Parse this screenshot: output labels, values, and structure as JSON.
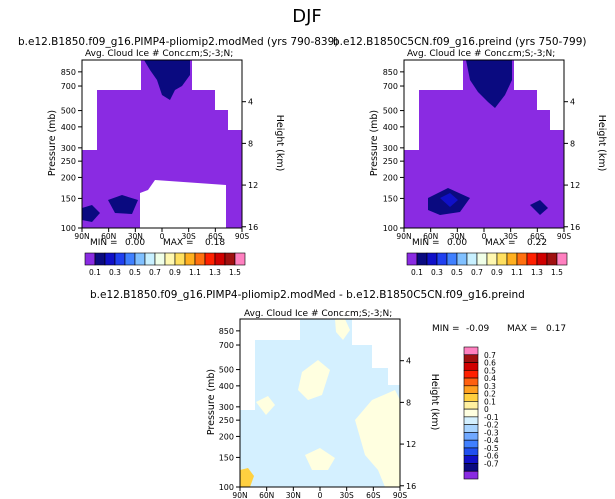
{
  "page_title": "DJF",
  "colors": {
    "sequential": [
      "#8a2be2",
      "#0a0a80",
      "#1010c8",
      "#2040f0",
      "#4080ff",
      "#80c0ff",
      "#c8f0ff",
      "#f0ffe8",
      "#fff8b0",
      "#ffe060",
      "#ffb020",
      "#ff7010",
      "#ff2000",
      "#d00000",
      "#a01010",
      "#ff80c0"
    ],
    "diverging": [
      "#8a2be2",
      "#0a0a80",
      "#1010c8",
      "#2050f0",
      "#4080ff",
      "#70a8ff",
      "#a8d4ff",
      "#d4f0ff",
      "#ffffe0",
      "#fff0a0",
      "#ffd040",
      "#ffa020",
      "#ff6010",
      "#ff2000",
      "#d00000",
      "#a01010",
      "#ff80c0"
    ],
    "white": "#ffffff"
  },
  "chart_data": [
    {
      "type": "heatmap",
      "title": "b.e12.B1850.f09_g16.PIMP4-pliomip2.modMed (yrs 790-839)",
      "subtitle": "Avg. Cloud Ice # Conc.",
      "units": "cm;S;-3;N;",
      "ylabel": "Pressure (mb)",
      "y2label": "Height (km)",
      "xticks": [
        "90N",
        "60N",
        "30N",
        "0",
        "30S",
        "60S",
        "90S"
      ],
      "yticks": [
        "100",
        "150",
        "200",
        "250",
        "300",
        "400",
        "500",
        "700",
        "850"
      ],
      "y2ticks": [
        "16",
        "12",
        "8",
        "4"
      ],
      "stats_min_label": "MIN =",
      "stats_min": "0.00",
      "stats_max_label": "MAX =",
      "stats_max": "0.18",
      "colorbar": {
        "orientation": "horizontal",
        "labels": [
          "0.1",
          "0.3",
          "0.5",
          "0.7",
          "0.9",
          "1.1",
          "1.3",
          "1.5"
        ]
      },
      "ylim": [
        1000,
        100
      ],
      "xlim": [
        90,
        -90
      ],
      "description_hidden": true
    },
    {
      "type": "heatmap",
      "title": "b.e12.B1850C5CN.f09_g16.preind (yrs 750-799)",
      "subtitle": "Avg. Cloud Ice # Conc.",
      "units": "cm;S;-3;N;",
      "ylabel": "Pressure (mb)",
      "y2label": "Height (km)",
      "xticks": [
        "90N",
        "60N",
        "30N",
        "0",
        "30S",
        "60S",
        "90S"
      ],
      "yticks": [
        "100",
        "150",
        "200",
        "250",
        "300",
        "400",
        "500",
        "700",
        "850"
      ],
      "y2ticks": [
        "16",
        "12",
        "8",
        "4"
      ],
      "stats_min_label": "MIN =",
      "stats_min": "0.00",
      "stats_max_label": "MAX =",
      "stats_max": "0.22",
      "colorbar": {
        "orientation": "horizontal",
        "labels": [
          "0.1",
          "0.3",
          "0.5",
          "0.7",
          "0.9",
          "1.1",
          "1.3",
          "1.5"
        ]
      },
      "ylim": [
        1000,
        100
      ],
      "xlim": [
        90,
        -90
      ]
    },
    {
      "type": "heatmap",
      "title": "b.e12.B1850.f09_g16.PIMP4-pliomip2.modMed - b.e12.B1850C5CN.f09_g16.preind",
      "subtitle": "Avg. Cloud Ice # Conc.",
      "units": "cm;S;-3;N;",
      "ylabel": "Pressure (mb)",
      "y2label": "Height (km)",
      "xticks": [
        "90N",
        "60N",
        "30N",
        "0",
        "30S",
        "60S",
        "90S"
      ],
      "yticks": [
        "100",
        "150",
        "200",
        "250",
        "300",
        "400",
        "500",
        "700",
        "850"
      ],
      "y2ticks": [
        "16",
        "12",
        "8",
        "4"
      ],
      "stats_min_label": "MIN =",
      "stats_min": "-0.09",
      "stats_max_label": "MAX =",
      "stats_max": "0.17",
      "colorbar": {
        "orientation": "vertical",
        "labels": [
          "0.7",
          "0.6",
          "0.5",
          "0.4",
          "0.3",
          "0.2",
          "0.1",
          "0",
          "-0.1",
          "-0.2",
          "-0.3",
          "-0.4",
          "-0.5",
          "-0.6",
          "-0.7"
        ]
      },
      "ylim": [
        1000,
        100
      ],
      "xlim": [
        90,
        -90
      ]
    }
  ]
}
